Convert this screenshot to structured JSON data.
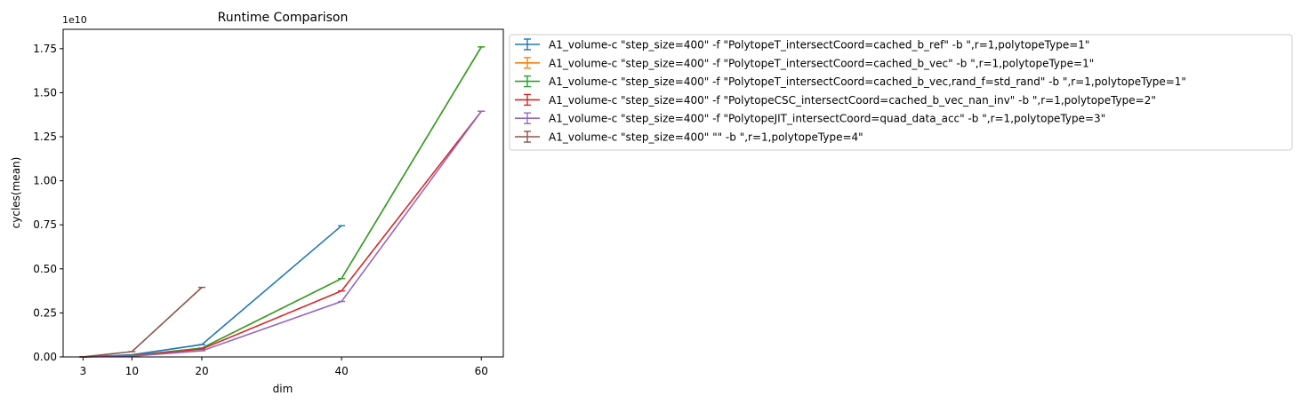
{
  "chart_data": {
    "type": "line",
    "title": "Runtime Comparison",
    "xlabel": "dim",
    "ylabel": "cycles(mean)",
    "y_offset_label": "1e10",
    "x_ticks": [
      3,
      10,
      20,
      40,
      60
    ],
    "y_ticks": [
      0.0,
      0.25,
      0.5,
      0.75,
      1.0,
      1.25,
      1.5,
      1.75
    ],
    "y_tick_labels": [
      "0.00",
      "0.25",
      "0.50",
      "0.75",
      "1.00",
      "1.25",
      "1.50",
      "1.75"
    ],
    "xlim": [
      0.15,
      63.15
    ],
    "ylim": [
      0,
      1.86
    ],
    "y_unit_scale": "1e10",
    "legend_position": "outside upper right",
    "series": [
      {
        "name": "A1_volume-c \"step_size=400\" -f \"PolytopeT_intersectCoord=cached_b_ref\" -b \",r=1,polytopeType=1\"",
        "color": "#1f77b4",
        "x": [
          3,
          10,
          20,
          40
        ],
        "y": [
          0.0003,
          0.012,
          0.07,
          0.745
        ]
      },
      {
        "name": "A1_volume-c \"step_size=400\" -f \"PolytopeT_intersectCoord=cached_b_vec\" -b \",r=1,polytopeType=1\"",
        "color": "#ff7f0e",
        "x": [
          3,
          10,
          20,
          40,
          60
        ],
        "y": [
          0.0003,
          0.007,
          0.05,
          0.445,
          1.76
        ]
      },
      {
        "name": "A1_volume-c \"step_size=400\" -f \"PolytopeT_intersectCoord=cached_b_vec,rand_f=std_rand\" -b \",r=1,polytopeType=1\"",
        "color": "#2ca02c",
        "x": [
          3,
          10,
          20,
          40,
          60
        ],
        "y": [
          0.0003,
          0.007,
          0.05,
          0.445,
          1.76
        ]
      },
      {
        "name": "A1_volume-c \"step_size=400\" -f \"PolytopeCSC_intersectCoord=cached_b_vec_nan_inv\" -b \",r=1,polytopeType=2\"",
        "color": "#d62728",
        "x": [
          3,
          10,
          20,
          40,
          60
        ],
        "y": [
          0.0003,
          0.006,
          0.045,
          0.375,
          1.395
        ]
      },
      {
        "name": "A1_volume-c \"step_size=400\" -f \"PolytopeJIT_intersectCoord=quad_data_acc\" -b \",r=1,polytopeType=3\"",
        "color": "#9467bd",
        "x": [
          3,
          10,
          20,
          40,
          60
        ],
        "y": [
          0.0003,
          0.004,
          0.035,
          0.315,
          1.395
        ]
      },
      {
        "name": "A1_volume-c \"step_size=400\"  \"\" -b \",r=1,polytopeType=4\"",
        "color": "#8c564b",
        "x": [
          3,
          10,
          20
        ],
        "y": [
          0.0003,
          0.03,
          0.395
        ]
      }
    ]
  }
}
